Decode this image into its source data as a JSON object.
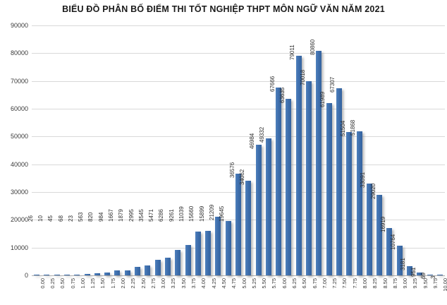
{
  "chart_data": {
    "type": "bar",
    "title": "BIỂU ĐỒ PHÂN BỐ ĐIỂM THI TỐT NGHIỆP THPT MÔN NGỮ VĂN NĂM 2021",
    "categories": [
      "0.00",
      "0.25",
      "0.50",
      "0.75",
      "1.00",
      "1.25",
      "1.50",
      "1.75",
      "2.00",
      "2.25",
      "2.50",
      "2.75",
      "3.00",
      "3.25",
      "3.50",
      "3.75",
      "4.00",
      "4.25",
      "4.50",
      "4.75",
      "5.00",
      "5.25",
      "5.50",
      "5.75",
      "6.00",
      "6.25",
      "6.50",
      "6.75",
      "7.00",
      "7.25",
      "7.50",
      "7.75",
      "8.00",
      "8.25",
      "8.50",
      "8.75",
      "9.00",
      "9.25",
      "9.50",
      "9.75",
      "10.00"
    ],
    "values": [
      26,
      10,
      45,
      68,
      23,
      563,
      820,
      984,
      1667,
      1879,
      2995,
      3545,
      5471,
      6286,
      9261,
      11039,
      15660,
      15899,
      21209,
      19645,
      36576,
      34062,
      46984,
      49332,
      67666,
      63635,
      79011,
      70018,
      80860,
      61989,
      67307,
      51504,
      51868,
      33091,
      29020,
      16919,
      10764,
      3181,
      951,
      69,
      3
    ],
    "xlabel": "",
    "ylabel": "",
    "ylim": [
      0,
      90000
    ],
    "yticks": [
      0,
      10000,
      20000,
      30000,
      40000,
      50000,
      60000,
      70000,
      80000,
      90000
    ],
    "grid": true,
    "legend": "none",
    "bar_color": "#3c6caa",
    "gridline_color": "#d9d9d9",
    "label_color": "#2e2e2e"
  }
}
